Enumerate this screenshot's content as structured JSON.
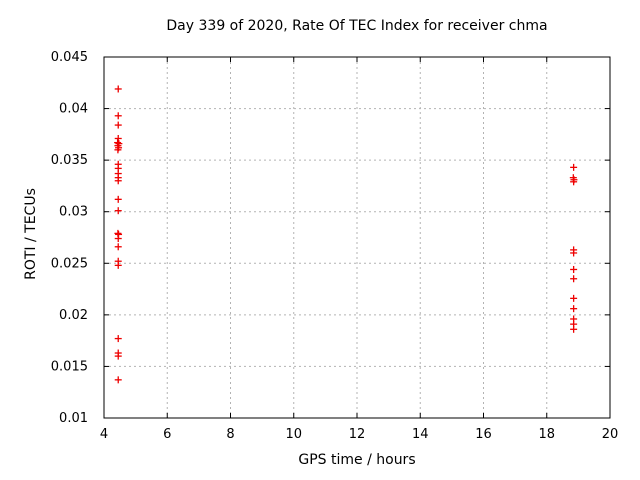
{
  "figure": {
    "background": "#ffffff",
    "border_color": "#000000",
    "grid_color": "#b3b3b3"
  },
  "chart_data": {
    "type": "scatter",
    "title": "Day 339 of 2020, Rate Of TEC Index for receiver chma",
    "xlabel": "GPS time / hours",
    "ylabel": "ROTI / TECUs",
    "xlim": [
      4,
      20
    ],
    "ylim": [
      0.01,
      0.045
    ],
    "grid": true,
    "legend_position": "none",
    "marker": "plus",
    "marker_color": "#ee0000",
    "xticks": {
      "values": [
        4,
        6,
        8,
        10,
        12,
        14,
        16,
        18,
        20
      ],
      "labels": [
        "4",
        "6",
        "8",
        "10",
        "12",
        "14",
        "16",
        "18",
        "20"
      ]
    },
    "yticks": {
      "values": [
        0.01,
        0.015,
        0.02,
        0.025,
        0.03,
        0.035,
        0.04,
        0.045
      ],
      "labels": [
        "0.01",
        "0.015",
        "0.02",
        "0.025",
        "0.03",
        "0.035",
        "0.04",
        "0.045"
      ]
    },
    "series": [
      {
        "name": "ROTI",
        "color": "#ee0000",
        "points": [
          [
            4.45,
            0.0419
          ],
          [
            4.45,
            0.0393
          ],
          [
            4.45,
            0.0384
          ],
          [
            4.45,
            0.0371
          ],
          [
            4.43,
            0.0367
          ],
          [
            4.47,
            0.0366
          ],
          [
            4.44,
            0.0364
          ],
          [
            4.46,
            0.0362
          ],
          [
            4.44,
            0.036
          ],
          [
            4.45,
            0.0346
          ],
          [
            4.45,
            0.0342
          ],
          [
            4.45,
            0.0337
          ],
          [
            4.45,
            0.0333
          ],
          [
            4.45,
            0.033
          ],
          [
            4.45,
            0.0312
          ],
          [
            4.45,
            0.0301
          ],
          [
            4.44,
            0.0279
          ],
          [
            4.46,
            0.0278
          ],
          [
            4.45,
            0.0274
          ],
          [
            4.45,
            0.0266
          ],
          [
            4.45,
            0.0252
          ],
          [
            4.45,
            0.0248
          ],
          [
            4.45,
            0.0177
          ],
          [
            4.45,
            0.0163
          ],
          [
            4.45,
            0.016
          ],
          [
            4.45,
            0.0137
          ],
          [
            18.85,
            0.0343
          ],
          [
            18.84,
            0.0333
          ],
          [
            18.86,
            0.0331
          ],
          [
            18.85,
            0.0329
          ],
          [
            18.85,
            0.0263
          ],
          [
            18.85,
            0.026
          ],
          [
            18.85,
            0.0244
          ],
          [
            18.85,
            0.0235
          ],
          [
            18.85,
            0.0216
          ],
          [
            18.85,
            0.0206
          ],
          [
            18.85,
            0.0196
          ],
          [
            18.85,
            0.0191
          ],
          [
            18.85,
            0.0186
          ]
        ]
      }
    ]
  }
}
